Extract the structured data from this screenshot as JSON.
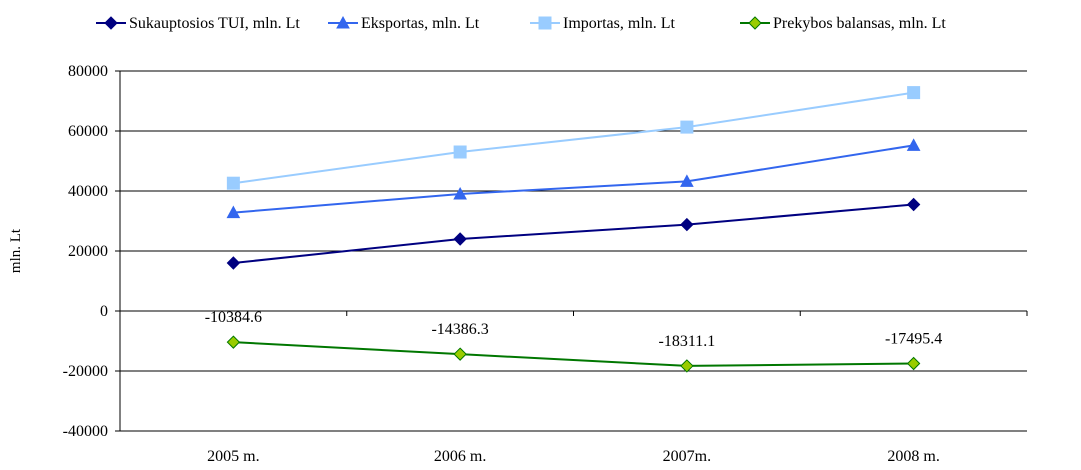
{
  "chart_data": {
    "type": "line",
    "title": "",
    "xlabel": "",
    "ylabel": "mln. Lt",
    "categories": [
      "2005 m.",
      "2006 m.",
      "2007m.",
      "2008 m."
    ],
    "ylim": [
      -40000,
      80000
    ],
    "yticks": [
      -40000,
      -20000,
      0,
      20000,
      40000,
      60000,
      80000
    ],
    "ytick_labels": [
      "-40000",
      "-20000",
      "0",
      "20000",
      "40000",
      "60000",
      "80000"
    ],
    "grid": "horizontal",
    "legend_position": "top",
    "series": [
      {
        "name": "Sukauptosios TUI, mln. Lt",
        "color": "#000080",
        "marker": "diamond",
        "values": [
          16000,
          24000,
          28800,
          35500
        ]
      },
      {
        "name": "Eksportas, mln. Lt",
        "color": "#3366ee",
        "marker": "triangle",
        "values": [
          32800,
          39000,
          43200,
          55200
        ]
      },
      {
        "name": "Importas, mln. Lt",
        "color": "#99ccff",
        "marker": "square",
        "values": [
          42600,
          53000,
          61300,
          72800
        ]
      },
      {
        "name": "Prekybos balansas, mln. Lt",
        "color": "#007700",
        "marker_fill": "#99cc00",
        "marker": "diamond",
        "values": [
          -10384.6,
          -14386.3,
          -18311.1,
          -17495.4
        ],
        "data_labels": [
          "-10384.6",
          "-14386.3",
          "-18311.1",
          "-17495.4"
        ]
      }
    ]
  }
}
